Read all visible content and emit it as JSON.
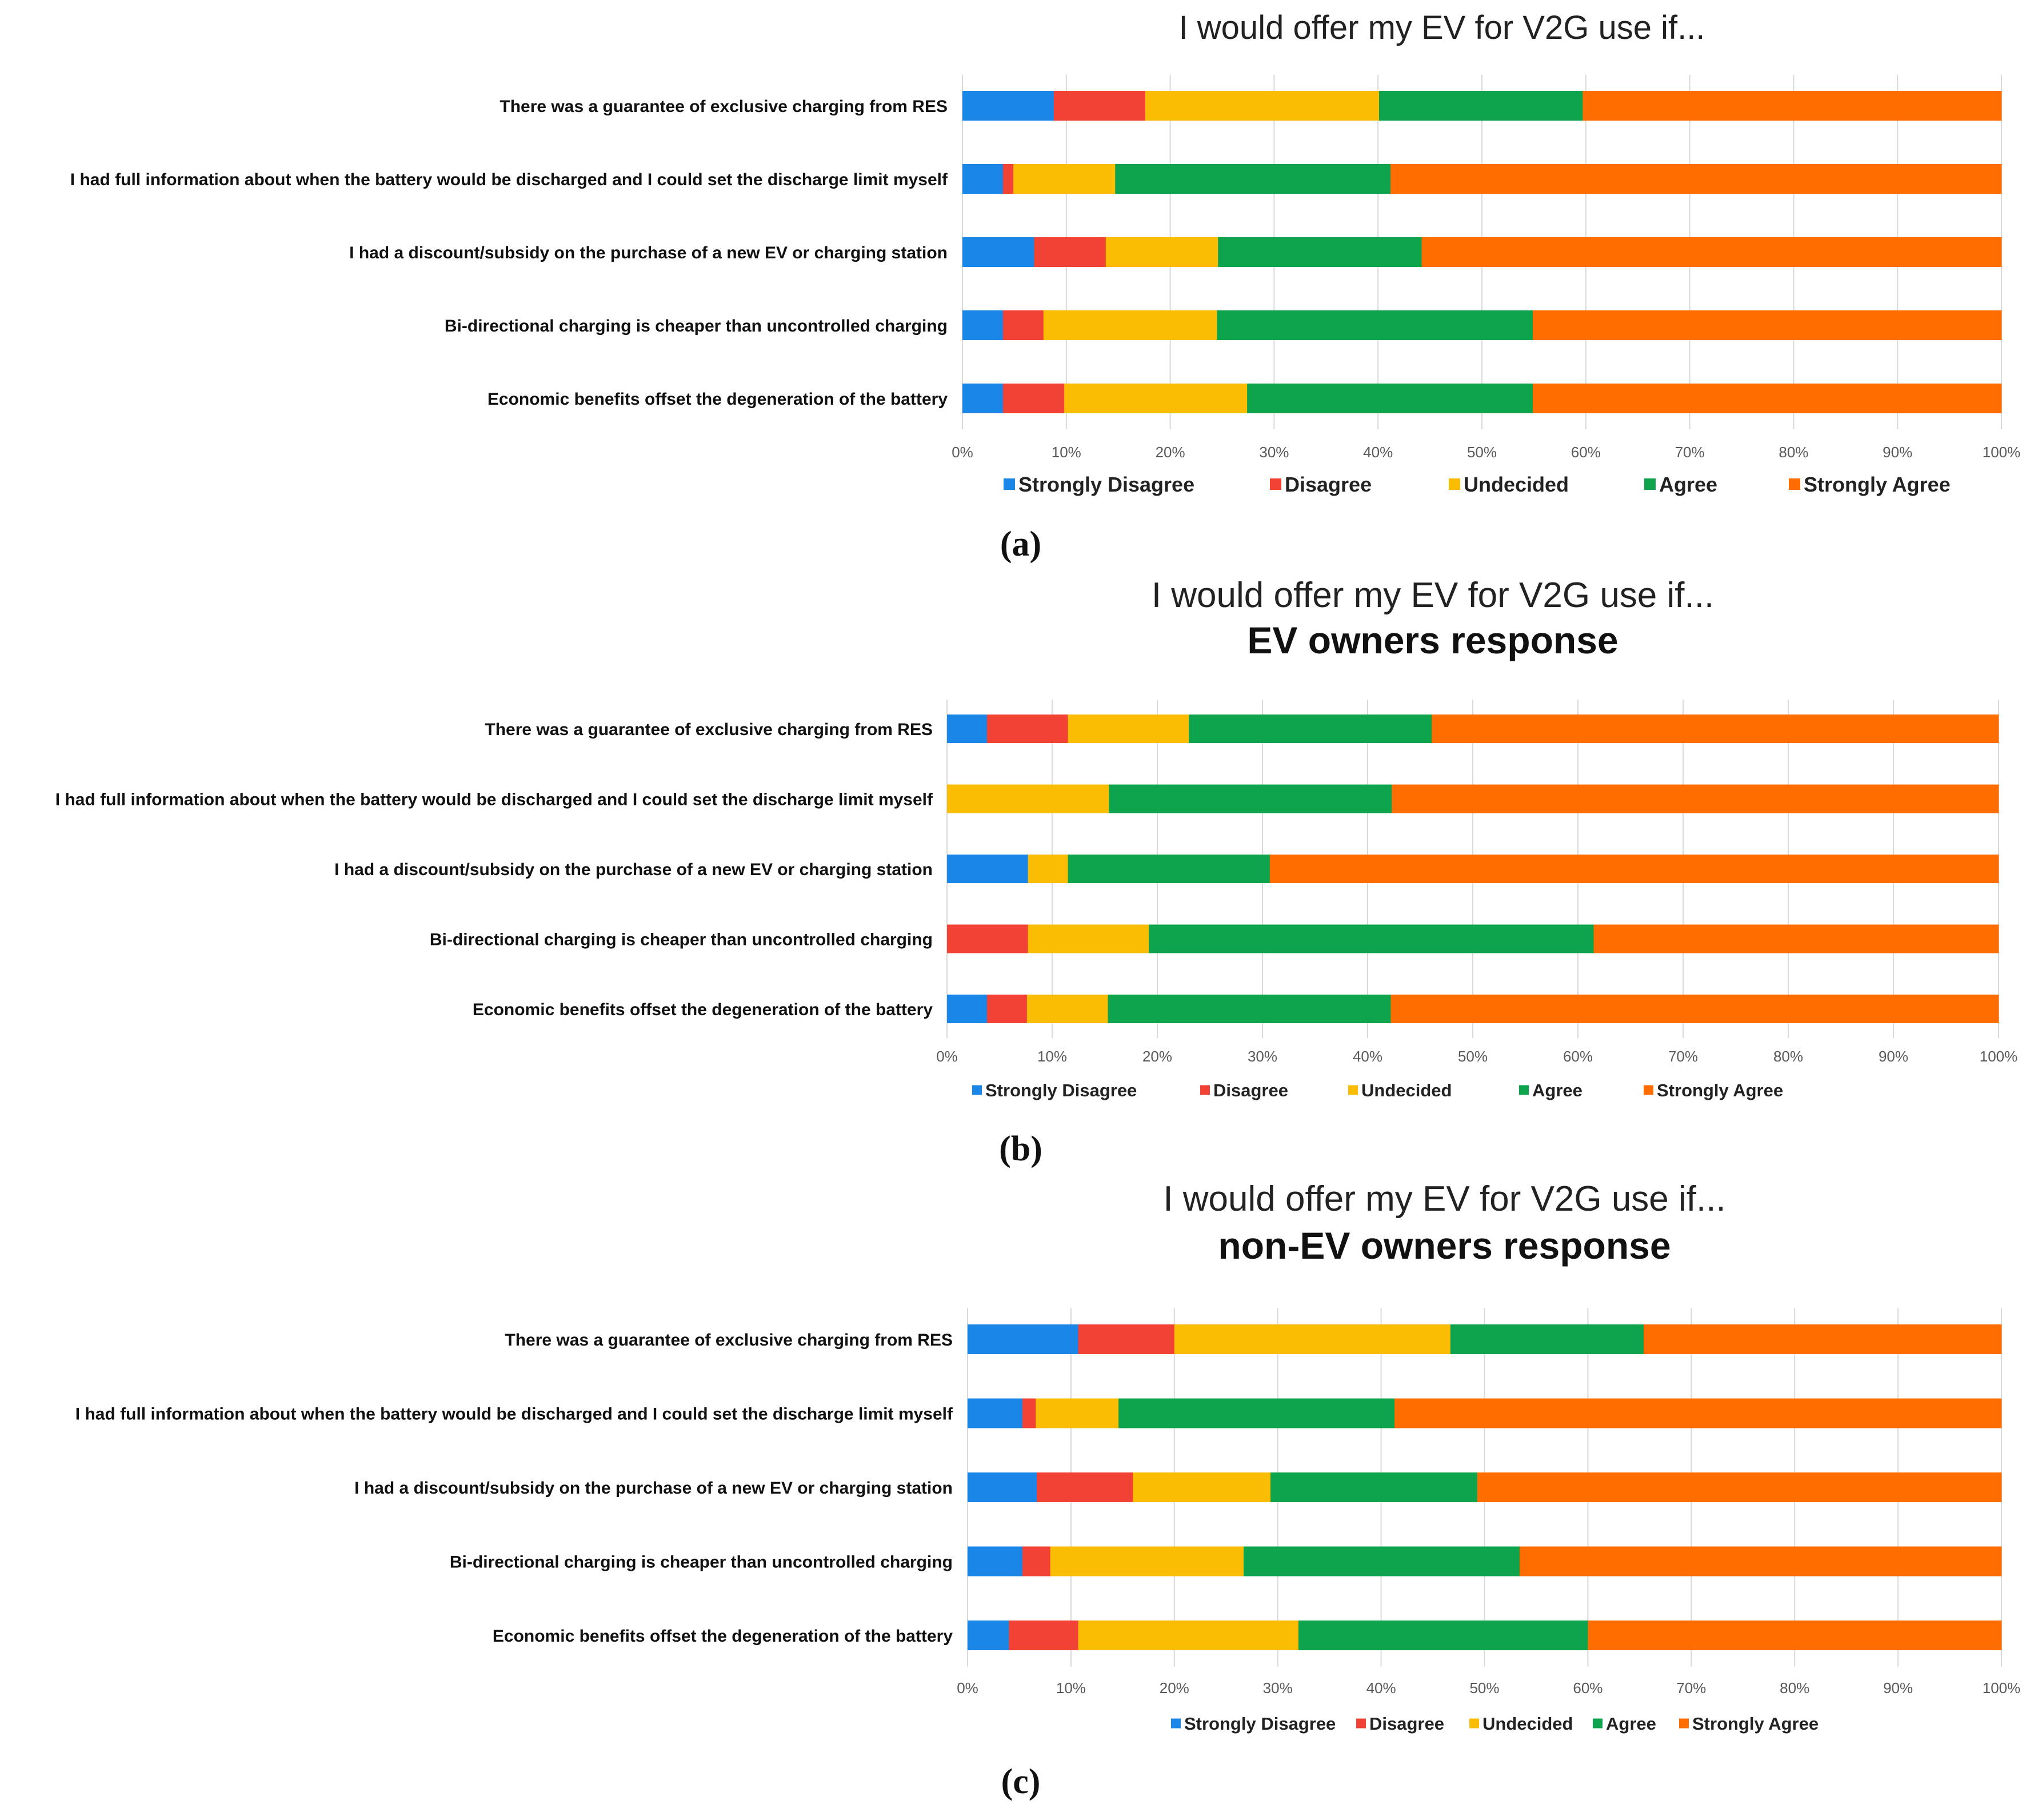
{
  "legend_colors": {
    "Strongly Disagree": "#1a86e8",
    "Disagree": "#f24236",
    "Undecided": "#fbbc04",
    "Agree": "#0ea44e",
    "Strongly Agree": "#ff6d01"
  },
  "chart_data": [
    {
      "type": "bar",
      "orientation": "horizontal",
      "stacked": "100%",
      "panel_label": "(a)",
      "title": "I would offer my EV for V2G use if...",
      "subtitle": "",
      "categories": [
        "There was a guarantee of exclusive charging from RES",
        "I had full information about when the battery would be discharged and I could set the discharge limit myself",
        "I had a discount/subsidy on the purchase of a new EV or charging station",
        "Bi-directional charging is cheaper than uncontrolled charging",
        "Economic benefits offset the degeneration of the battery"
      ],
      "series": [
        {
          "name": "Strongly Disagree",
          "values": [
            8.8,
            3.9,
            6.9,
            3.9,
            3.9
          ]
        },
        {
          "name": "Disagree",
          "values": [
            8.8,
            1.0,
            6.9,
            3.9,
            5.9
          ]
        },
        {
          "name": "Undecided",
          "values": [
            22.5,
            9.8,
            10.8,
            16.7,
            17.6
          ]
        },
        {
          "name": "Agree",
          "values": [
            19.6,
            26.5,
            19.6,
            30.4,
            27.5
          ]
        },
        {
          "name": "Strongly Agree",
          "values": [
            40.3,
            58.8,
            55.8,
            45.1,
            45.1
          ]
        }
      ],
      "xlim": [
        0,
        100
      ],
      "x_ticks": [
        "0%",
        "10%",
        "20%",
        "30%",
        "40%",
        "50%",
        "60%",
        "70%",
        "80%",
        "90%",
        "100%"
      ],
      "grid": "vertical",
      "legend_position": "bottom"
    },
    {
      "type": "bar",
      "orientation": "horizontal",
      "stacked": "100%",
      "panel_label": "(b)",
      "title": "I would offer my EV for V2G use if...",
      "subtitle": "EV owners response",
      "categories": [
        "There was a guarantee of exclusive charging from RES",
        "I had full information about when the battery would be discharged and I could set the discharge limit myself",
        "I had a discount/subsidy on the purchase of a new EV or charging station",
        "Bi-directional charging is cheaper than uncontrolled charging",
        "Economic benefits offset the degeneration of the battery"
      ],
      "series": [
        {
          "name": "Strongly Disagree",
          "values": [
            3.8,
            0.0,
            7.7,
            0.0,
            3.8
          ]
        },
        {
          "name": "Disagree",
          "values": [
            7.7,
            0.0,
            0.0,
            7.7,
            3.8
          ]
        },
        {
          "name": "Undecided",
          "values": [
            11.5,
            15.4,
            3.8,
            11.5,
            7.7
          ]
        },
        {
          "name": "Agree",
          "values": [
            23.1,
            26.9,
            19.2,
            42.3,
            26.9
          ]
        },
        {
          "name": "Strongly Agree",
          "values": [
            53.9,
            57.7,
            69.3,
            38.5,
            57.8
          ]
        }
      ],
      "xlim": [
        0,
        100
      ],
      "x_ticks": [
        "0%",
        "10%",
        "20%",
        "30%",
        "40%",
        "50%",
        "60%",
        "70%",
        "80%",
        "90%",
        "100%"
      ],
      "grid": "vertical",
      "legend_position": "bottom"
    },
    {
      "type": "bar",
      "orientation": "horizontal",
      "stacked": "100%",
      "panel_label": "(c)",
      "title": "I would offer my EV for V2G use if...",
      "subtitle": "non-EV owners response",
      "categories": [
        "There was a guarantee of exclusive charging from RES",
        "I had full information about when the battery would be discharged and I could set the discharge limit myself",
        "I had a discount/subsidy on the purchase of a new EV or charging station",
        "Bi-directional charging is cheaper than uncontrolled charging",
        "Economic benefits offset the degeneration of the battery"
      ],
      "series": [
        {
          "name": "Strongly Disagree",
          "values": [
            10.7,
            5.3,
            6.7,
            5.3,
            4.0
          ]
        },
        {
          "name": "Disagree",
          "values": [
            9.3,
            1.3,
            9.3,
            2.7,
            6.7
          ]
        },
        {
          "name": "Undecided",
          "values": [
            26.7,
            8.0,
            13.3,
            18.7,
            21.3
          ]
        },
        {
          "name": "Agree",
          "values": [
            18.7,
            26.7,
            20.0,
            26.7,
            28.0
          ]
        },
        {
          "name": "Strongly Agree",
          "values": [
            34.6,
            58.7,
            50.7,
            46.6,
            40.0
          ]
        }
      ],
      "xlim": [
        0,
        100
      ],
      "x_ticks": [
        "0%",
        "10%",
        "20%",
        "30%",
        "40%",
        "50%",
        "60%",
        "70%",
        "80%",
        "90%",
        "100%"
      ],
      "grid": "vertical",
      "legend_position": "bottom"
    }
  ]
}
